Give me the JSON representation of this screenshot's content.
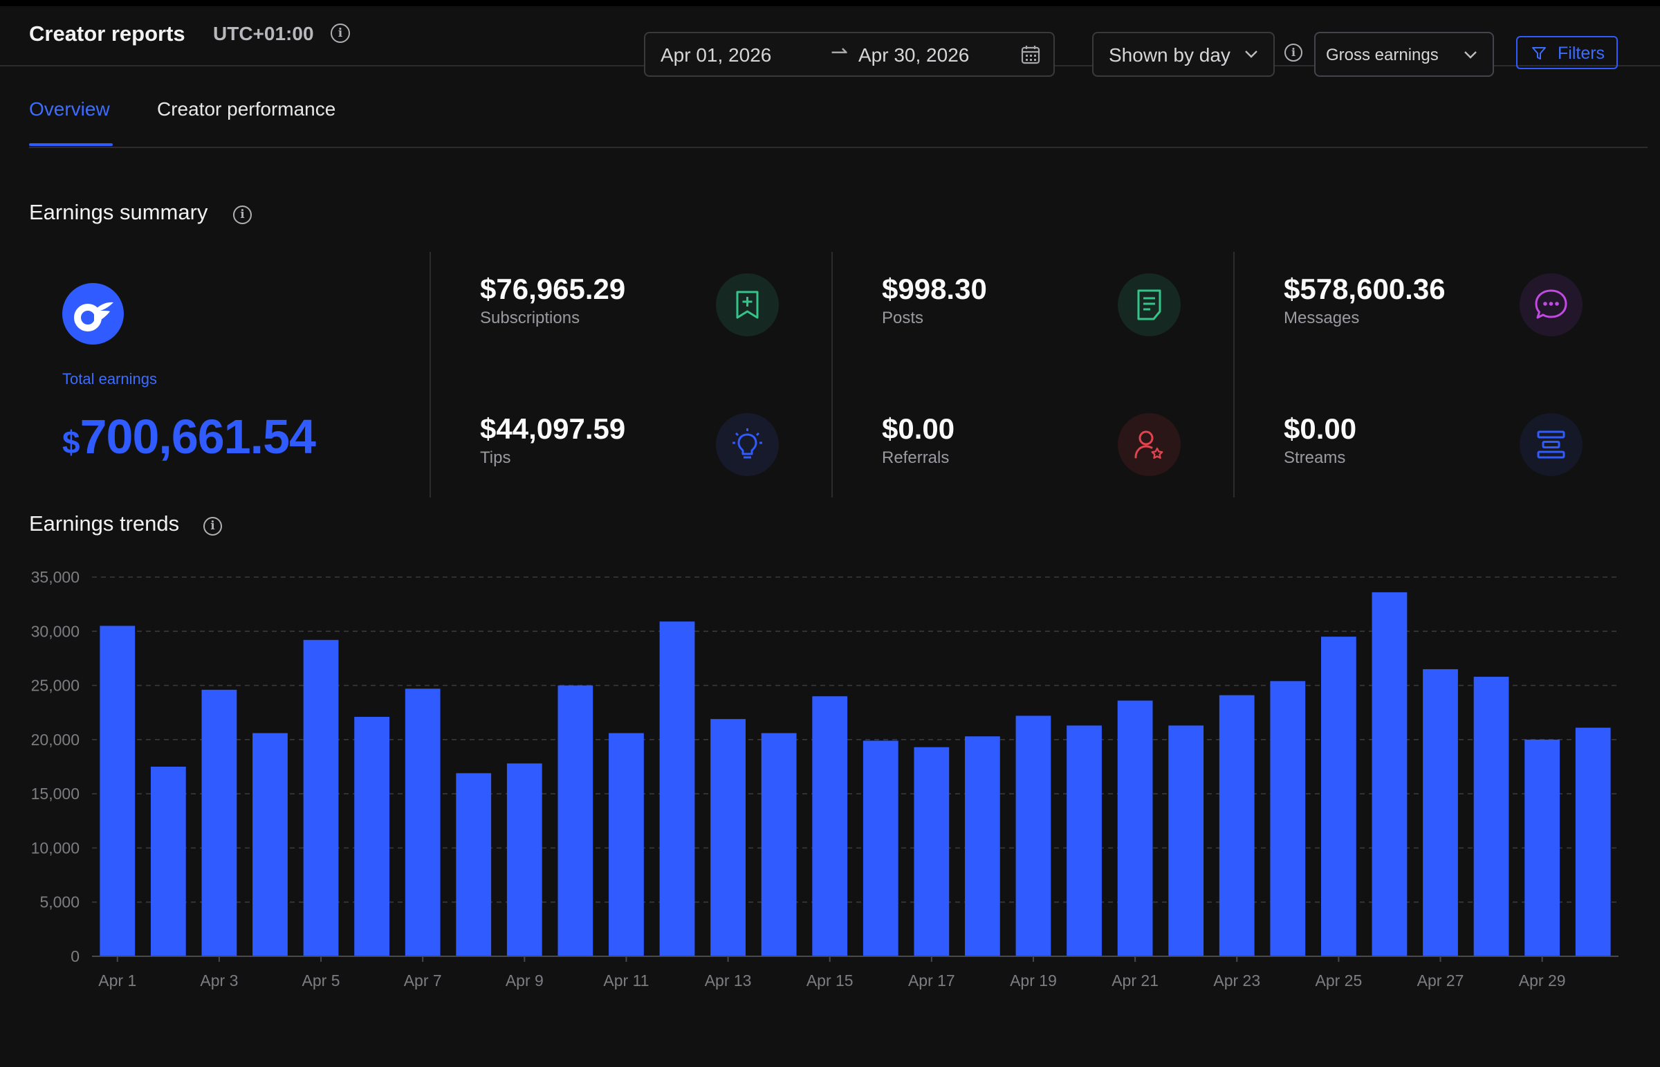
{
  "header": {
    "title": "Creator reports",
    "timezone": "UTC+01:00"
  },
  "tabs": [
    {
      "label": "Overview",
      "active": true
    },
    {
      "label": "Creator performance",
      "active": false
    }
  ],
  "date_range": {
    "start": "Apr 01, 2026",
    "arrow": "⇀",
    "end": "Apr 30, 2026"
  },
  "granularity": {
    "selected": "Shown by day"
  },
  "metric_select": {
    "selected": "Gross earnings"
  },
  "filters": {
    "label": "Filters"
  },
  "earnings_summary": {
    "title": "Earnings summary",
    "total": {
      "label": "Total earnings",
      "currency": "$",
      "amount": "700,661.54"
    },
    "items": [
      {
        "key": "subscriptions",
        "value": "$76,965.29",
        "label": "Subscriptions",
        "icon": "subscription-bookmark-icon",
        "color": "#35c48a"
      },
      {
        "key": "posts",
        "value": "$998.30",
        "label": "Posts",
        "icon": "post-document-icon",
        "color": "#35c48a"
      },
      {
        "key": "messages",
        "value": "$578,600.36",
        "label": "Messages",
        "icon": "chat-bubble-icon",
        "color": "#c14be0"
      },
      {
        "key": "tips",
        "value": "$44,097.59",
        "label": "Tips",
        "icon": "lightbulb-icon",
        "color": "#2f5bff"
      },
      {
        "key": "referrals",
        "value": "$0.00",
        "label": "Referrals",
        "icon": "referral-user-icon",
        "color": "#e0444e"
      },
      {
        "key": "streams",
        "value": "$0.00",
        "label": "Streams",
        "icon": "streams-icon",
        "color": "#2f5bff"
      }
    ]
  },
  "earnings_trends": {
    "title": "Earnings trends"
  },
  "colors": {
    "accent": "#2f5bff",
    "background": "#111112"
  },
  "chart_data": {
    "type": "bar",
    "title": "",
    "xlabel": "",
    "ylabel": "",
    "ylim": [
      0,
      35000
    ],
    "y_ticks": [
      "35,000",
      "30,000",
      "25,000",
      "20,000",
      "15,000",
      "10,000",
      "5,000",
      "0"
    ],
    "grid": true,
    "categories": [
      "Apr 1",
      "Apr 2",
      "Apr 3",
      "Apr 4",
      "Apr 5",
      "Apr 6",
      "Apr 7",
      "Apr 8",
      "Apr 9",
      "Apr 10",
      "Apr 11",
      "Apr 12",
      "Apr 13",
      "Apr 14",
      "Apr 15",
      "Apr 16",
      "Apr 17",
      "Apr 18",
      "Apr 19",
      "Apr 20",
      "Apr 21",
      "Apr 22",
      "Apr 23",
      "Apr 24",
      "Apr 25",
      "Apr 26",
      "Apr 27",
      "Apr 28",
      "Apr 29",
      "Apr 30"
    ],
    "x_tick_labels": [
      "Apr 1",
      "Apr 3",
      "Apr 5",
      "Apr 7",
      "Apr 9",
      "Apr 11",
      "Apr 13",
      "Apr 15",
      "Apr 17",
      "Apr 19",
      "Apr 21",
      "Apr 23",
      "Apr 25",
      "Apr 27",
      "Apr 29"
    ],
    "values": [
      30500,
      17500,
      24600,
      20600,
      29200,
      22100,
      24700,
      16900,
      17800,
      25000,
      20600,
      30900,
      21900,
      20600,
      24000,
      19900,
      19300,
      20300,
      22200,
      21300,
      23600,
      21300,
      24100,
      25400,
      29500,
      33600,
      26500,
      25800,
      20000,
      21100
    ],
    "color": "#2f5bff"
  }
}
